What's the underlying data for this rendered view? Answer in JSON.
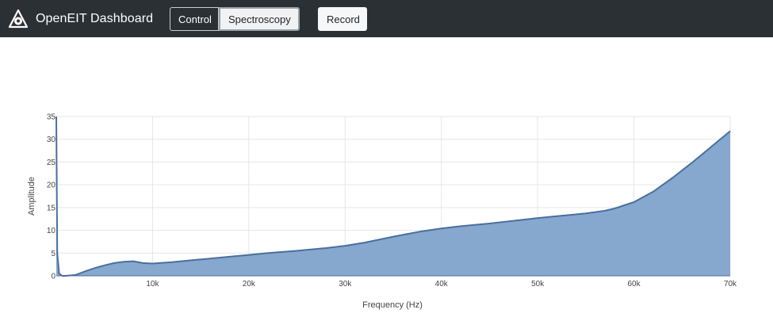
{
  "header": {
    "brand_title": "OpenEIT Dashboard",
    "brand_icon": "openeit-logo-icon",
    "tabs": [
      {
        "label": "Control",
        "selected": false
      },
      {
        "label": "Spectroscopy",
        "selected": true
      }
    ],
    "record_label": "Record"
  },
  "colors": {
    "navbar_bg": "#2b3035",
    "area_fill": "#86a7ce",
    "area_line": "#4a6f9e"
  },
  "chart_data": {
    "type": "area",
    "title": "",
    "xlabel": "Frequency (Hz)",
    "ylabel": "Amplitude",
    "xlim": [
      0,
      70000
    ],
    "ylim": [
      0,
      35
    ],
    "x_ticks": [
      "10k",
      "20k",
      "30k",
      "40k",
      "50k",
      "60k",
      "70k"
    ],
    "y_ticks": [
      "0",
      "5",
      "10",
      "15",
      "20",
      "25",
      "30",
      "35"
    ],
    "grid": true,
    "x": [
      0,
      100,
      300,
      600,
      1000,
      2000,
      3000,
      4000,
      5000,
      6000,
      7000,
      8000,
      9000,
      10000,
      12000,
      15000,
      18000,
      20000,
      22000,
      25000,
      28000,
      30000,
      32000,
      35000,
      38000,
      40000,
      42000,
      45000,
      48000,
      50000,
      52000,
      55000,
      57000,
      58000,
      59000,
      60000,
      62000,
      64000,
      66000,
      68000,
      70000
    ],
    "y": [
      35,
      5,
      0.5,
      0,
      0,
      0.2,
      1.0,
      1.7,
      2.3,
      2.8,
      3.1,
      3.2,
      2.8,
      2.7,
      3.0,
      3.6,
      4.2,
      4.6,
      5.0,
      5.5,
      6.1,
      6.6,
      7.3,
      8.6,
      9.8,
      10.4,
      10.9,
      11.5,
      12.2,
      12.7,
      13.1,
      13.7,
      14.3,
      14.8,
      15.5,
      16.2,
      18.5,
      21.5,
      24.8,
      28.3,
      31.8
    ]
  }
}
